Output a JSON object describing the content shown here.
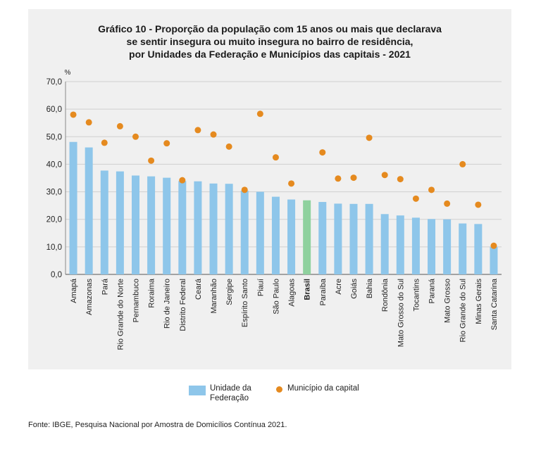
{
  "chart_data": {
    "type": "bar",
    "title": "Gráfico 10 - Proporção da população com 15 anos ou mais que declarava se sentir insegura ou muito insegura no bairro de residência, por Unidades da Federação e Municípios das capitais - 2021",
    "title_lines": [
      "Gráfico 10 - Proporção da população com 15 anos ou mais que declarava",
      "se sentir insegura ou muito insegura no bairro de residência,",
      "por Unidades da Federação e Municípios das capitais - 2021"
    ],
    "ylabel": "%",
    "xlabel": "",
    "ylim": [
      0,
      70
    ],
    "yticks": [
      "0,0",
      "10,0",
      "20,0",
      "30,0",
      "40,0",
      "50,0",
      "60,0",
      "70,0"
    ],
    "grid": true,
    "legend_position": "bottom",
    "categories": [
      "Amapá",
      "Amazonas",
      "Pará",
      "Rio Grande do Norte",
      "Pernambuco",
      "Roraima",
      "Rio de Janeiro",
      "Distrito Federal",
      "Ceará",
      "Maranhão",
      "Sergipe",
      "Espírito Santo",
      "Piauí",
      "São Paulo",
      "Alagoas",
      "Brasil",
      "Paraíba",
      "Acre",
      "Goiás",
      "Bahia",
      "Rondônia",
      "Mato Grosso do Sul",
      "Tocantins",
      "Paraná",
      "Mato Grosso",
      "Rio Grande do Sul",
      "Minas Gerais",
      "Santa Catarina"
    ],
    "highlight_category": "Brasil",
    "series": [
      {
        "name": "Unidade da Federação",
        "kind": "bar",
        "color": "#8ec6ea",
        "highlight_color": "#8fd19e",
        "values": [
          48.1,
          46.1,
          37.7,
          37.4,
          35.9,
          35.6,
          35.1,
          33.9,
          33.8,
          33.0,
          32.9,
          30.4,
          30.0,
          28.2,
          27.2,
          26.9,
          26.3,
          25.7,
          25.6,
          25.6,
          21.9,
          21.4,
          20.6,
          20.1,
          20.0,
          18.5,
          18.3,
          10.0
        ]
      },
      {
        "name": "Município da capital",
        "kind": "dot",
        "color": "#e58a1f",
        "values": [
          58.0,
          55.2,
          47.8,
          53.8,
          50.0,
          41.3,
          47.6,
          34.2,
          52.4,
          50.8,
          46.4,
          30.7,
          58.3,
          42.5,
          33.0,
          null,
          44.3,
          34.8,
          35.1,
          49.6,
          36.1,
          34.6,
          27.5,
          30.7,
          25.7,
          40.0,
          25.3,
          10.4
        ]
      }
    ]
  },
  "legend": {
    "bar_label": "Unidade da Federação",
    "dot_label": "Município da capital"
  },
  "source": "Fonte: IBGE, Pesquisa Nacional por Amostra de Domicílios Contínua 2021."
}
